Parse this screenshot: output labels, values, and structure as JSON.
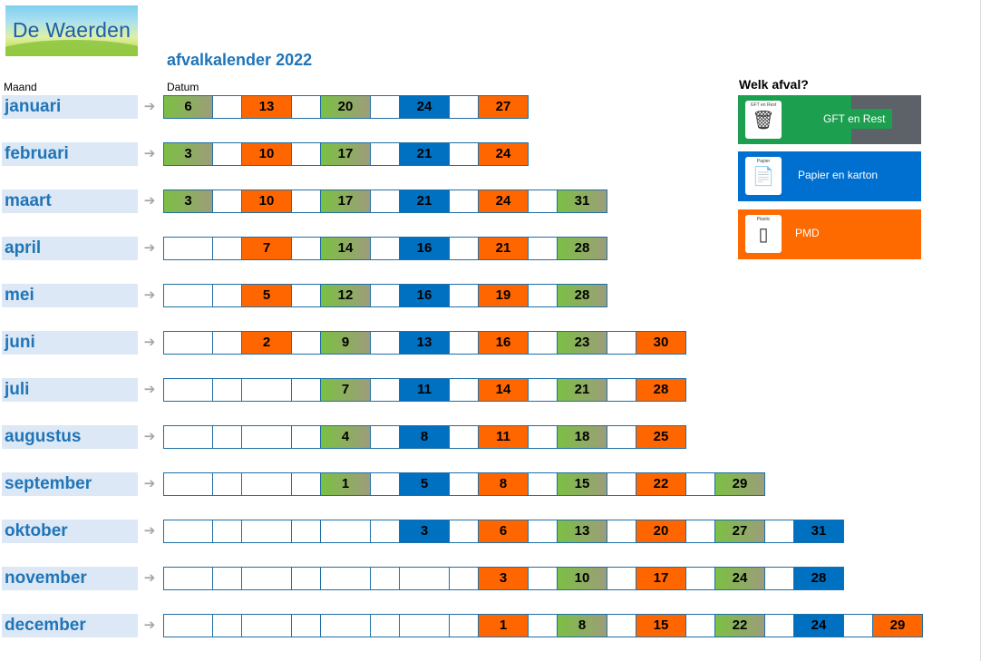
{
  "header": {
    "logo_text": "De Waerden",
    "title": "afvalkalender 2022",
    "col_month": "Maand",
    "col_date": "Datum"
  },
  "legend": {
    "title": "Welk afval?",
    "items": [
      {
        "type": "gft",
        "icon_caption": "GFT en Rest",
        "label": "GFT en Rest",
        "color": "#1c9f4f",
        "icon": "trash-bins-icon"
      },
      {
        "type": "pap",
        "icon_caption": "Papier",
        "label": "Papier en karton",
        "color": "#0070d0",
        "icon": "paper-icon"
      },
      {
        "type": "pmd",
        "icon_caption": "Plastic",
        "label": "PMD",
        "color": "#ff6a00",
        "icon": "bottle-icon"
      }
    ]
  },
  "colors": {
    "gft": "#7cbf44",
    "pap": "#0070c0",
    "pmd": "#ff6600",
    "month_bg": "#dce8f5",
    "month_text": "#2075b8"
  },
  "months": [
    {
      "name": "januari",
      "cells": [
        [
          "gft",
          "6"
        ],
        [
          "",
          ""
        ],
        [
          "pmd",
          "13"
        ],
        [
          "",
          ""
        ],
        [
          "gft",
          "20"
        ],
        [
          "",
          ""
        ],
        [
          "pap",
          "24"
        ],
        [
          "",
          ""
        ],
        [
          "pmd",
          "27"
        ]
      ]
    },
    {
      "name": "februari",
      "cells": [
        [
          "gft",
          "3"
        ],
        [
          "",
          ""
        ],
        [
          "pmd",
          "10"
        ],
        [
          "",
          ""
        ],
        [
          "gft",
          "17"
        ],
        [
          "",
          ""
        ],
        [
          "pap",
          "21"
        ],
        [
          "",
          ""
        ],
        [
          "pmd",
          "24"
        ]
      ]
    },
    {
      "name": "maart",
      "cells": [
        [
          "gft",
          "3"
        ],
        [
          "",
          ""
        ],
        [
          "pmd",
          "10"
        ],
        [
          "",
          ""
        ],
        [
          "gft",
          "17"
        ],
        [
          "",
          ""
        ],
        [
          "pap",
          "21"
        ],
        [
          "",
          ""
        ],
        [
          "pmd",
          "24"
        ],
        [
          "",
          ""
        ],
        [
          "gft",
          "31"
        ]
      ]
    },
    {
      "name": "april",
      "cells": [
        [
          "",
          ""
        ],
        [
          "",
          ""
        ],
        [
          "pmd",
          "7"
        ],
        [
          "",
          ""
        ],
        [
          "gft",
          "14"
        ],
        [
          "",
          ""
        ],
        [
          "pap",
          "16"
        ],
        [
          "",
          ""
        ],
        [
          "pmd",
          "21"
        ],
        [
          "",
          ""
        ],
        [
          "gft",
          "28"
        ]
      ]
    },
    {
      "name": "mei",
      "cells": [
        [
          "",
          ""
        ],
        [
          "",
          ""
        ],
        [
          "pmd",
          "5"
        ],
        [
          "",
          ""
        ],
        [
          "gft",
          "12"
        ],
        [
          "",
          ""
        ],
        [
          "pap",
          "16"
        ],
        [
          "",
          ""
        ],
        [
          "pmd",
          "19"
        ],
        [
          "",
          ""
        ],
        [
          "gft",
          "28"
        ]
      ]
    },
    {
      "name": "juni",
      "cells": [
        [
          "",
          ""
        ],
        [
          "",
          ""
        ],
        [
          "pmd",
          "2"
        ],
        [
          "",
          ""
        ],
        [
          "gft",
          "9"
        ],
        [
          "",
          ""
        ],
        [
          "pap",
          "13"
        ],
        [
          "",
          ""
        ],
        [
          "pmd",
          "16"
        ],
        [
          "",
          ""
        ],
        [
          "gft",
          "23"
        ],
        [
          "",
          ""
        ],
        [
          "pmd",
          "30"
        ]
      ]
    },
    {
      "name": "juli",
      "cells": [
        [
          "",
          ""
        ],
        [
          "",
          ""
        ],
        [
          "",
          ""
        ],
        [
          "",
          ""
        ],
        [
          "gft",
          "7"
        ],
        [
          "",
          ""
        ],
        [
          "pap",
          "11"
        ],
        [
          "",
          ""
        ],
        [
          "pmd",
          "14"
        ],
        [
          "",
          ""
        ],
        [
          "gft",
          "21"
        ],
        [
          "",
          ""
        ],
        [
          "pmd",
          "28"
        ]
      ]
    },
    {
      "name": "augustus",
      "cells": [
        [
          "",
          ""
        ],
        [
          "",
          ""
        ],
        [
          "",
          ""
        ],
        [
          "",
          ""
        ],
        [
          "gft",
          "4"
        ],
        [
          "",
          ""
        ],
        [
          "pap",
          "8"
        ],
        [
          "",
          ""
        ],
        [
          "pmd",
          "11"
        ],
        [
          "",
          ""
        ],
        [
          "gft",
          "18"
        ],
        [
          "",
          ""
        ],
        [
          "pmd",
          "25"
        ]
      ]
    },
    {
      "name": "september",
      "cells": [
        [
          "",
          ""
        ],
        [
          "",
          ""
        ],
        [
          "",
          ""
        ],
        [
          "",
          ""
        ],
        [
          "gft",
          "1"
        ],
        [
          "",
          ""
        ],
        [
          "pap",
          "5"
        ],
        [
          "",
          ""
        ],
        [
          "pmd",
          "8"
        ],
        [
          "",
          ""
        ],
        [
          "gft",
          "15"
        ],
        [
          "",
          ""
        ],
        [
          "pmd",
          "22"
        ],
        [
          "",
          ""
        ],
        [
          "gft",
          "29"
        ]
      ]
    },
    {
      "name": "oktober",
      "cells": [
        [
          "",
          ""
        ],
        [
          "",
          ""
        ],
        [
          "",
          ""
        ],
        [
          "",
          ""
        ],
        [
          "",
          ""
        ],
        [
          "",
          ""
        ],
        [
          "pap",
          "3"
        ],
        [
          "",
          ""
        ],
        [
          "pmd",
          "6"
        ],
        [
          "",
          ""
        ],
        [
          "gft",
          "13"
        ],
        [
          "",
          ""
        ],
        [
          "pmd",
          "20"
        ],
        [
          "",
          ""
        ],
        [
          "gft",
          "27"
        ],
        [
          "",
          ""
        ],
        [
          "pap",
          "31"
        ]
      ]
    },
    {
      "name": "november",
      "cells": [
        [
          "",
          ""
        ],
        [
          "",
          ""
        ],
        [
          "",
          ""
        ],
        [
          "",
          ""
        ],
        [
          "",
          ""
        ],
        [
          "",
          ""
        ],
        [
          "",
          ""
        ],
        [
          "",
          ""
        ],
        [
          "pmd",
          "3"
        ],
        [
          "",
          ""
        ],
        [
          "gft",
          "10"
        ],
        [
          "",
          ""
        ],
        [
          "pmd",
          "17"
        ],
        [
          "",
          ""
        ],
        [
          "gft",
          "24"
        ],
        [
          "",
          ""
        ],
        [
          "pap",
          "28"
        ]
      ]
    },
    {
      "name": "december",
      "cells": [
        [
          "",
          ""
        ],
        [
          "",
          ""
        ],
        [
          "",
          ""
        ],
        [
          "",
          ""
        ],
        [
          "",
          ""
        ],
        [
          "",
          ""
        ],
        [
          "",
          ""
        ],
        [
          "",
          ""
        ],
        [
          "pmd",
          "1"
        ],
        [
          "",
          ""
        ],
        [
          "gft",
          "8"
        ],
        [
          "",
          ""
        ],
        [
          "pmd",
          "15"
        ],
        [
          "",
          ""
        ],
        [
          "gft",
          "22"
        ],
        [
          "",
          ""
        ],
        [
          "pap",
          "24"
        ],
        [
          "",
          ""
        ],
        [
          "pmd",
          "29"
        ]
      ]
    }
  ]
}
